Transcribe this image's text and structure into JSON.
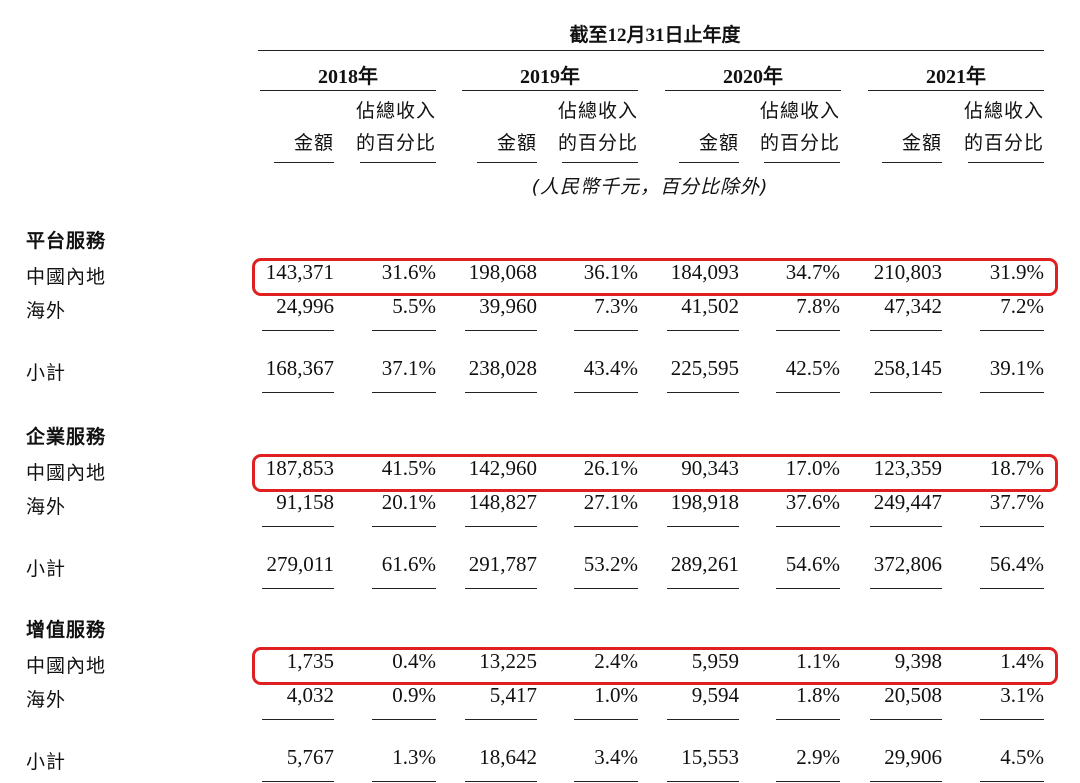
{
  "header": {
    "period_title": "截至12月31日止年度",
    "years": [
      "2018年",
      "2019年",
      "2020年",
      "2021年"
    ],
    "col_amount": "金額",
    "col_pct_line1": "佔總收入",
    "col_pct_line2": "的百分比",
    "unit_note": "(人民幣千元，百分比除外)"
  },
  "sections": [
    {
      "title": "平台服務",
      "rows": [
        {
          "label": "中國內地",
          "values": [
            "143,371",
            "31.6%",
            "198,068",
            "36.1%",
            "184,093",
            "34.7%",
            "210,803",
            "31.9%"
          ]
        },
        {
          "label": "海外",
          "values": [
            "24,996",
            "5.5%",
            "39,960",
            "7.3%",
            "41,502",
            "7.8%",
            "47,342",
            "7.2%"
          ]
        },
        {
          "label": "小計",
          "values": [
            "168,367",
            "37.1%",
            "238,028",
            "43.4%",
            "225,595",
            "42.5%",
            "258,145",
            "39.1%"
          ]
        }
      ]
    },
    {
      "title": "企業服務",
      "rows": [
        {
          "label": "中國內地",
          "values": [
            "187,853",
            "41.5%",
            "142,960",
            "26.1%",
            "90,343",
            "17.0%",
            "123,359",
            "18.7%"
          ]
        },
        {
          "label": "海外",
          "values": [
            "91,158",
            "20.1%",
            "148,827",
            "27.1%",
            "198,918",
            "37.6%",
            "249,447",
            "37.7%"
          ]
        },
        {
          "label": "小計",
          "values": [
            "279,011",
            "61.6%",
            "291,787",
            "53.2%",
            "289,261",
            "54.6%",
            "372,806",
            "56.4%"
          ]
        }
      ]
    },
    {
      "title": "增值服務",
      "rows": [
        {
          "label": "中國內地",
          "values": [
            "1,735",
            "0.4%",
            "13,225",
            "2.4%",
            "5,959",
            "1.1%",
            "9,398",
            "1.4%"
          ]
        },
        {
          "label": "海外",
          "values": [
            "4,032",
            "0.9%",
            "5,417",
            "1.0%",
            "9,594",
            "1.8%",
            "20,508",
            "3.1%"
          ]
        },
        {
          "label": "小計",
          "values": [
            "5,767",
            "1.3%",
            "18,642",
            "3.4%",
            "15,553",
            "2.9%",
            "29,906",
            "4.5%"
          ]
        }
      ]
    }
  ],
  "highlight_color": "#e02020"
}
